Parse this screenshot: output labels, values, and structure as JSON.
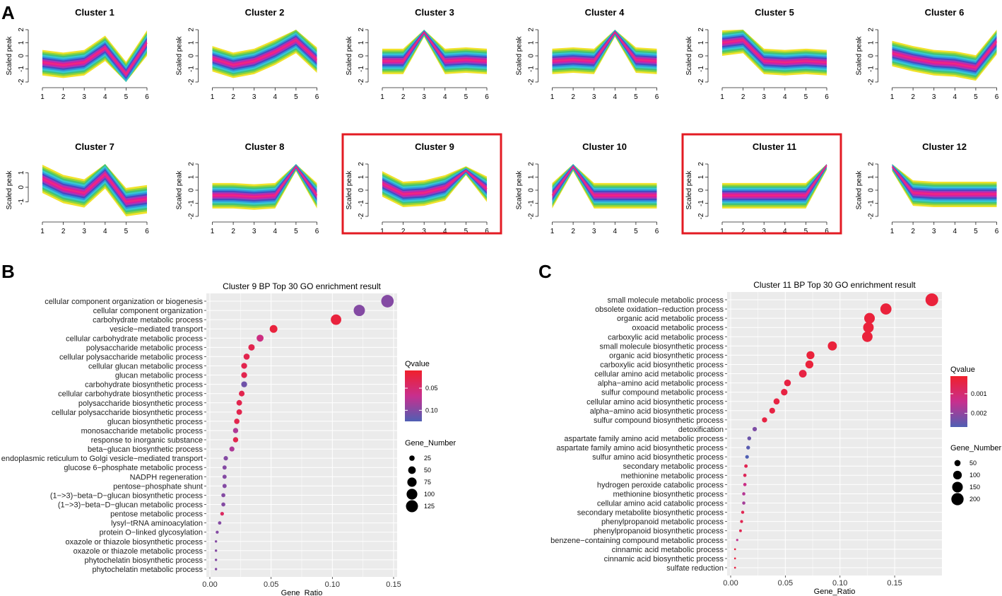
{
  "panel_labels": [
    "A",
    "B",
    "C"
  ],
  "colors": {
    "cluster_gradient": [
      "#e0189a",
      "#f02c7c",
      "#a838b8",
      "#4848c0",
      "#2f8fdc",
      "#37c7d8",
      "#3fc27a",
      "#8bd33b",
      "#f0e020"
    ],
    "qvalue_low": "#f0202c",
    "qvalue_mid": "#c82f8e",
    "qvalue_high": "#4f5fb3",
    "highlight_box": "#e31b23",
    "panel_bg": "#ebebeb",
    "grid": "#ffffff"
  },
  "chart_data": [
    {
      "type": "line",
      "panel": "A",
      "title": "Cluster 1",
      "ylabel": "Scaled peak",
      "x": [
        1,
        2,
        3,
        4,
        5,
        6
      ],
      "xticks": [
        "1",
        "2",
        "3",
        "4",
        "5",
        "6"
      ],
      "yticks": [
        "-2",
        "-1",
        "0",
        "1",
        "2"
      ],
      "ylim": [
        -2,
        2
      ],
      "center": [
        -0.5,
        -0.7,
        -0.5,
        0.6,
        -1.4,
        1.0
      ],
      "highlighted": false
    },
    {
      "type": "line",
      "panel": "A",
      "title": "Cluster 2",
      "ylabel": "Scaled peak",
      "x": [
        1,
        2,
        3,
        4,
        5,
        6
      ],
      "xticks": [
        "1",
        "2",
        "3",
        "4",
        "5",
        "6"
      ],
      "yticks": [
        "-2",
        "-1",
        "0",
        "1",
        "2"
      ],
      "ylim": [
        -2,
        2
      ],
      "center": [
        -0.2,
        -0.7,
        -0.4,
        0.3,
        1.2,
        -0.3
      ],
      "highlighted": false
    },
    {
      "type": "line",
      "panel": "A",
      "title": "Cluster 3",
      "ylabel": "Scaled peak",
      "x": [
        1,
        2,
        3,
        4,
        5,
        6
      ],
      "xticks": [
        "1",
        "2",
        "3",
        "4",
        "5",
        "6"
      ],
      "yticks": [
        "-2",
        "-1",
        "0",
        "1",
        "2"
      ],
      "ylim": [
        -2,
        2
      ],
      "center": [
        -0.4,
        -0.4,
        1.8,
        -0.4,
        -0.3,
        -0.4
      ],
      "highlighted": false
    },
    {
      "type": "line",
      "panel": "A",
      "title": "Cluster 4",
      "ylabel": "Scaled peak",
      "x": [
        1,
        2,
        3,
        4,
        5,
        6
      ],
      "xticks": [
        "1",
        "2",
        "3",
        "4",
        "5",
        "6"
      ],
      "yticks": [
        "-2",
        "-1",
        "0",
        "1",
        "2"
      ],
      "ylim": [
        -2,
        2
      ],
      "center": [
        -0.4,
        -0.3,
        -0.4,
        1.8,
        -0.3,
        -0.4
      ],
      "highlighted": false
    },
    {
      "type": "line",
      "panel": "A",
      "title": "Cluster 5",
      "ylabel": "Scaled peak",
      "x": [
        1,
        2,
        3,
        4,
        5,
        6
      ],
      "xticks": [
        "1",
        "2",
        "3",
        "4",
        "5",
        "6"
      ],
      "yticks": [
        "-2",
        "-1",
        "0",
        "1",
        "2"
      ],
      "ylim": [
        -2,
        2
      ],
      "center": [
        1.0,
        1.2,
        -0.4,
        -0.5,
        -0.4,
        -0.5
      ],
      "highlighted": false
    },
    {
      "type": "line",
      "panel": "A",
      "title": "Cluster 6",
      "ylabel": "Scaled peak",
      "x": [
        1,
        2,
        3,
        4,
        5,
        6
      ],
      "xticks": [
        "1",
        "2",
        "3",
        "4",
        "5",
        "6"
      ],
      "yticks": [
        "-2",
        "-1",
        "0",
        "1",
        "2"
      ],
      "ylim": [
        -2,
        2
      ],
      "center": [
        0.2,
        -0.2,
        -0.5,
        -0.6,
        -0.9,
        1.1
      ],
      "highlighted": false
    },
    {
      "type": "line",
      "panel": "A",
      "title": "Cluster 7",
      "ylabel": "Scaled peak",
      "x": [
        1,
        2,
        3,
        4,
        5,
        6
      ],
      "xticks": [
        "1",
        "2",
        "3",
        "4",
        "5",
        "6"
      ],
      "yticks": [
        "-1",
        "0",
        "1"
      ],
      "ylim": [
        -2,
        1.6
      ],
      "center": [
        0.6,
        -0.1,
        -0.4,
        0.9,
        -1.0,
        -0.8
      ],
      "highlighted": false
    },
    {
      "type": "line",
      "panel": "A",
      "title": "Cluster 8",
      "ylabel": "Scaled peak",
      "x": [
        1,
        2,
        3,
        4,
        5,
        6
      ],
      "xticks": [
        "1",
        "2",
        "3",
        "4",
        "5",
        "6"
      ],
      "yticks": [
        "-2",
        "-1",
        "0",
        "1",
        "2"
      ],
      "ylim": [
        -2,
        2
      ],
      "center": [
        -0.4,
        -0.4,
        -0.5,
        -0.4,
        1.8,
        -0.4
      ],
      "highlighted": false
    },
    {
      "type": "line",
      "panel": "A",
      "title": "Cluster 9",
      "ylabel": "Scaled peak",
      "x": [
        1,
        2,
        3,
        4,
        5,
        6
      ],
      "xticks": [
        "1",
        "2",
        "3",
        "4",
        "5",
        "6"
      ],
      "yticks": [
        "-2",
        "-1",
        "0",
        "1",
        "2"
      ],
      "ylim": [
        -2,
        2
      ],
      "center": [
        0.5,
        -0.3,
        -0.2,
        0.2,
        1.5,
        0.1
      ],
      "highlighted": true
    },
    {
      "type": "line",
      "panel": "A",
      "title": "Cluster 10",
      "ylabel": "Scaled peak",
      "x": [
        1,
        2,
        3,
        4,
        5,
        6
      ],
      "xticks": [
        "1",
        "2",
        "3",
        "4",
        "5",
        "6"
      ],
      "yticks": [
        "-2",
        "-1",
        "0",
        "1",
        "2"
      ],
      "ylim": [
        -2,
        2
      ],
      "center": [
        -0.4,
        1.8,
        -0.4,
        -0.4,
        -0.4,
        -0.4
      ],
      "highlighted": false
    },
    {
      "type": "line",
      "panel": "A",
      "title": "Cluster 11",
      "ylabel": "Scaled peak",
      "x": [
        1,
        2,
        3,
        4,
        5,
        6
      ],
      "xticks": [
        "1",
        "2",
        "3",
        "4",
        "5",
        "6"
      ],
      "yticks": [
        "-2",
        "-1",
        "0",
        "1",
        "2"
      ],
      "ylim": [
        -2,
        2
      ],
      "center": [
        -0.4,
        -0.4,
        -0.4,
        -0.4,
        -0.4,
        1.9
      ],
      "highlighted": true
    },
    {
      "type": "line",
      "panel": "A",
      "title": "Cluster 12",
      "ylabel": "Scaled peak",
      "x": [
        1,
        2,
        3,
        4,
        5,
        6
      ],
      "xticks": [
        "1",
        "2",
        "3",
        "4",
        "5",
        "6"
      ],
      "yticks": [
        "-2",
        "-1",
        "0",
        "1",
        "2"
      ],
      "ylim": [
        -2,
        2
      ],
      "center": [
        1.8,
        -0.2,
        -0.3,
        -0.3,
        -0.3,
        -0.3
      ],
      "highlighted": false
    },
    {
      "type": "scatter",
      "panel": "B",
      "title": "Cluster 9 BP Top 30 GO enrichment result",
      "xlabel": "Gene_Ratio",
      "xlim": [
        0,
        0.15
      ],
      "xticks": [
        "0.00",
        "0.05",
        "0.10",
        "0.15"
      ],
      "xtick_values": [
        0,
        0.05,
        0.1,
        0.15
      ],
      "color_legend_title": "Qvalue",
      "color_legend_ticks": [
        "0.05",
        "0.10"
      ],
      "size_legend_title": "Gene_Number",
      "size_legend_ticks": [
        "25",
        "50",
        "75",
        "100",
        "125"
      ],
      "size_legend_values": [
        25,
        50,
        75,
        100,
        125
      ],
      "terms": [
        "cellular component organization or biogenesis",
        "cellular component organization",
        "carbohydrate metabolic process",
        "vesicle−mediated transport",
        "cellular carbohydrate metabolic process",
        "polysaccharide metabolic process",
        "cellular polysaccharide metabolic process",
        "cellular glucan metabolic process",
        "glucan metabolic process",
        "carbohydrate biosynthetic process",
        "cellular carbohydrate biosynthetic process",
        "polysaccharide biosynthetic process",
        "cellular polysaccharide biosynthetic process",
        "glucan biosynthetic process",
        "monosaccharide metabolic process",
        "response to inorganic substance",
        "beta−glucan biosynthetic process",
        "endoplasmic reticulum to Golgi vesicle−mediated transport",
        "glucose 6−phosphate metabolic process",
        "NADPH regeneration",
        "pentose−phosphate shunt",
        "(1−>3)−beta−D−glucan biosynthetic process",
        "(1−>3)−beta−D−glucan metabolic process",
        "pentose metabolic process",
        "lysyl−tRNA aminoacylation",
        "protein O−linked glycosylation",
        "oxazole or thiazole biosynthetic process",
        "oxazole or thiazole metabolic process",
        "phytochelatin biosynthetic process",
        "phytochelatin metabolic process"
      ],
      "gene_ratio": [
        0.145,
        0.122,
        0.103,
        0.052,
        0.041,
        0.034,
        0.03,
        0.028,
        0.028,
        0.028,
        0.026,
        0.024,
        0.024,
        0.022,
        0.021,
        0.021,
        0.018,
        0.013,
        0.012,
        0.012,
        0.012,
        0.011,
        0.011,
        0.01,
        0.008,
        0.006,
        0.005,
        0.005,
        0.005,
        0.005
      ],
      "gene_number": [
        135,
        110,
        95,
        52,
        42,
        35,
        32,
        30,
        30,
        30,
        28,
        27,
        27,
        25,
        24,
        24,
        22,
        17,
        15,
        15,
        15,
        14,
        14,
        12,
        10,
        8,
        5,
        5,
        5,
        5
      ],
      "qvalue": [
        0.1,
        0.1,
        0.02,
        0.02,
        0.06,
        0.03,
        0.03,
        0.03,
        0.03,
        0.11,
        0.03,
        0.03,
        0.03,
        0.03,
        0.08,
        0.03,
        0.08,
        0.1,
        0.1,
        0.1,
        0.1,
        0.1,
        0.1,
        0.04,
        0.1,
        0.1,
        0.1,
        0.1,
        0.1,
        0.1
      ]
    },
    {
      "type": "scatter",
      "panel": "C",
      "title": "Cluster 11 BP Top 30 GO enrichment result",
      "xlabel": "Gene_Ratio",
      "xlim": [
        0,
        0.19
      ],
      "xticks": [
        "0.00",
        "0.05",
        "0.10",
        "0.15"
      ],
      "xtick_values": [
        0,
        0.05,
        0.1,
        0.15
      ],
      "color_legend_title": "Qvalue",
      "color_legend_ticks": [
        "0.001",
        "0.002"
      ],
      "size_legend_title": "Gene_Number",
      "size_legend_ticks": [
        "50",
        "100",
        "150",
        "200"
      ],
      "size_legend_values": [
        50,
        100,
        150,
        200
      ],
      "terms": [
        "small molecule metabolic process",
        "obsolete oxidation−reduction process",
        "organic acid metabolic process",
        "oxoacid metabolic process",
        "carboxylic acid metabolic process",
        "small molecule biosynthetic process",
        "organic acid biosynthetic process",
        "carboxylic acid biosynthetic process",
        "cellular amino acid metabolic process",
        "alpha−amino acid metabolic process",
        "sulfur compound metabolic process",
        "cellular amino acid biosynthetic process",
        "alpha−amino acid biosynthetic process",
        "sulfur compound biosynthetic process",
        "detoxification",
        "aspartate family amino acid metabolic process",
        "aspartate family amino acid biosynthetic process",
        "sulfur amino acid biosynthetic process",
        "secondary metabolic process",
        "methionine metabolic process",
        "hydrogen peroxide catabolic process",
        "methionine biosynthetic process",
        "cellular amino acid catabolic process",
        "secondary metabolite biosynthetic process",
        "phenylpropanoid metabolic process",
        "phenylpropanoid biosynthetic process",
        "benzene−containing compound metabolic process",
        "cinnamic acid metabolic process",
        "cinnamic acid biosynthetic process",
        "sulfate reduction"
      ],
      "gene_ratio": [
        0.184,
        0.142,
        0.127,
        0.126,
        0.125,
        0.093,
        0.073,
        0.072,
        0.066,
        0.052,
        0.049,
        0.042,
        0.038,
        0.031,
        0.022,
        0.017,
        0.016,
        0.015,
        0.014,
        0.013,
        0.013,
        0.012,
        0.012,
        0.011,
        0.01,
        0.009,
        0.006,
        0.004,
        0.004,
        0.004
      ],
      "gene_number": [
        215,
        165,
        150,
        148,
        146,
        110,
        85,
        84,
        78,
        60,
        57,
        50,
        45,
        36,
        26,
        20,
        19,
        18,
        16,
        15,
        15,
        14,
        14,
        13,
        12,
        10,
        7,
        5,
        5,
        5
      ],
      "qvalue": [
        0.0003,
        0.0003,
        0.0003,
        0.0003,
        0.0003,
        0.0003,
        0.0003,
        0.0003,
        0.0004,
        0.0004,
        0.0004,
        0.0004,
        0.0004,
        0.0004,
        0.0022,
        0.0024,
        0.0026,
        0.0028,
        0.0006,
        0.0007,
        0.0013,
        0.0016,
        0.0018,
        0.0006,
        0.0006,
        0.0006,
        0.0015,
        0.0004,
        0.0004,
        0.0004
      ]
    }
  ]
}
